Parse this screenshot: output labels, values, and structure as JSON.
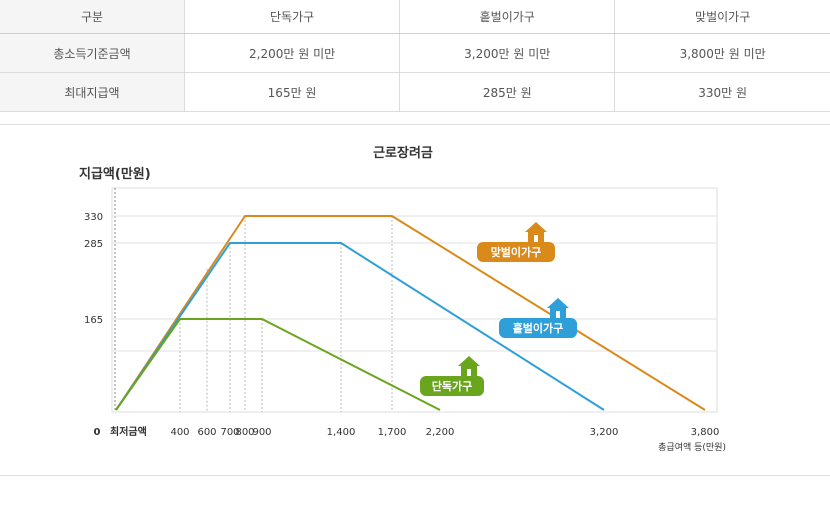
{
  "table": {
    "headers": [
      "구분",
      "단독가구",
      "홑벌이가구",
      "맞벌이가구"
    ],
    "rows": [
      {
        "label": "총소득기준금액",
        "values": [
          "2,200만 원 미만",
          "3,200만 원 미만",
          "3,800만 원 미만"
        ]
      },
      {
        "label": "최대지급액",
        "values": [
          "165만 원",
          "285만 원",
          "330만 원"
        ]
      }
    ]
  },
  "chart_data": {
    "type": "line",
    "title": "근로장려금",
    "ylabel": "지급액(만원)",
    "xlabel": "총급여액 등(만원)",
    "x_origin_labels": [
      "0",
      "최저금액"
    ],
    "x_ticks": [
      {
        "value": 400,
        "label": "400"
      },
      {
        "value": 600,
        "label": "600"
      },
      {
        "value": 700,
        "label": "700"
      },
      {
        "value": 800,
        "label": "800"
      },
      {
        "value": 900,
        "label": "900"
      },
      {
        "value": 1400,
        "label": "1,400"
      },
      {
        "value": 1700,
        "label": "1,700"
      },
      {
        "value": 2200,
        "label": "2,200"
      },
      {
        "value": 3200,
        "label": "3,200"
      },
      {
        "value": 3800,
        "label": "3,800"
      }
    ],
    "y_ticks": [
      {
        "value": 165,
        "label": "165"
      },
      {
        "value": 285,
        "label": "285"
      },
      {
        "value": 330,
        "label": "330"
      }
    ],
    "series": [
      {
        "name": "맞벌이가구",
        "color": "#d98a1a",
        "points": [
          [
            0,
            0
          ],
          [
            800,
            330
          ],
          [
            1700,
            330
          ],
          [
            3800,
            0
          ]
        ]
      },
      {
        "name": "홑벌이가구",
        "color": "#2e9fd8",
        "points": [
          [
            0,
            0
          ],
          [
            700,
            285
          ],
          [
            1400,
            285
          ],
          [
            3200,
            0
          ]
        ]
      },
      {
        "name": "단독가구",
        "color": "#6aa51e",
        "points": [
          [
            0,
            0
          ],
          [
            400,
            165
          ],
          [
            900,
            165
          ],
          [
            2200,
            0
          ]
        ]
      }
    ],
    "grid": true,
    "legend": "inline-labels"
  }
}
